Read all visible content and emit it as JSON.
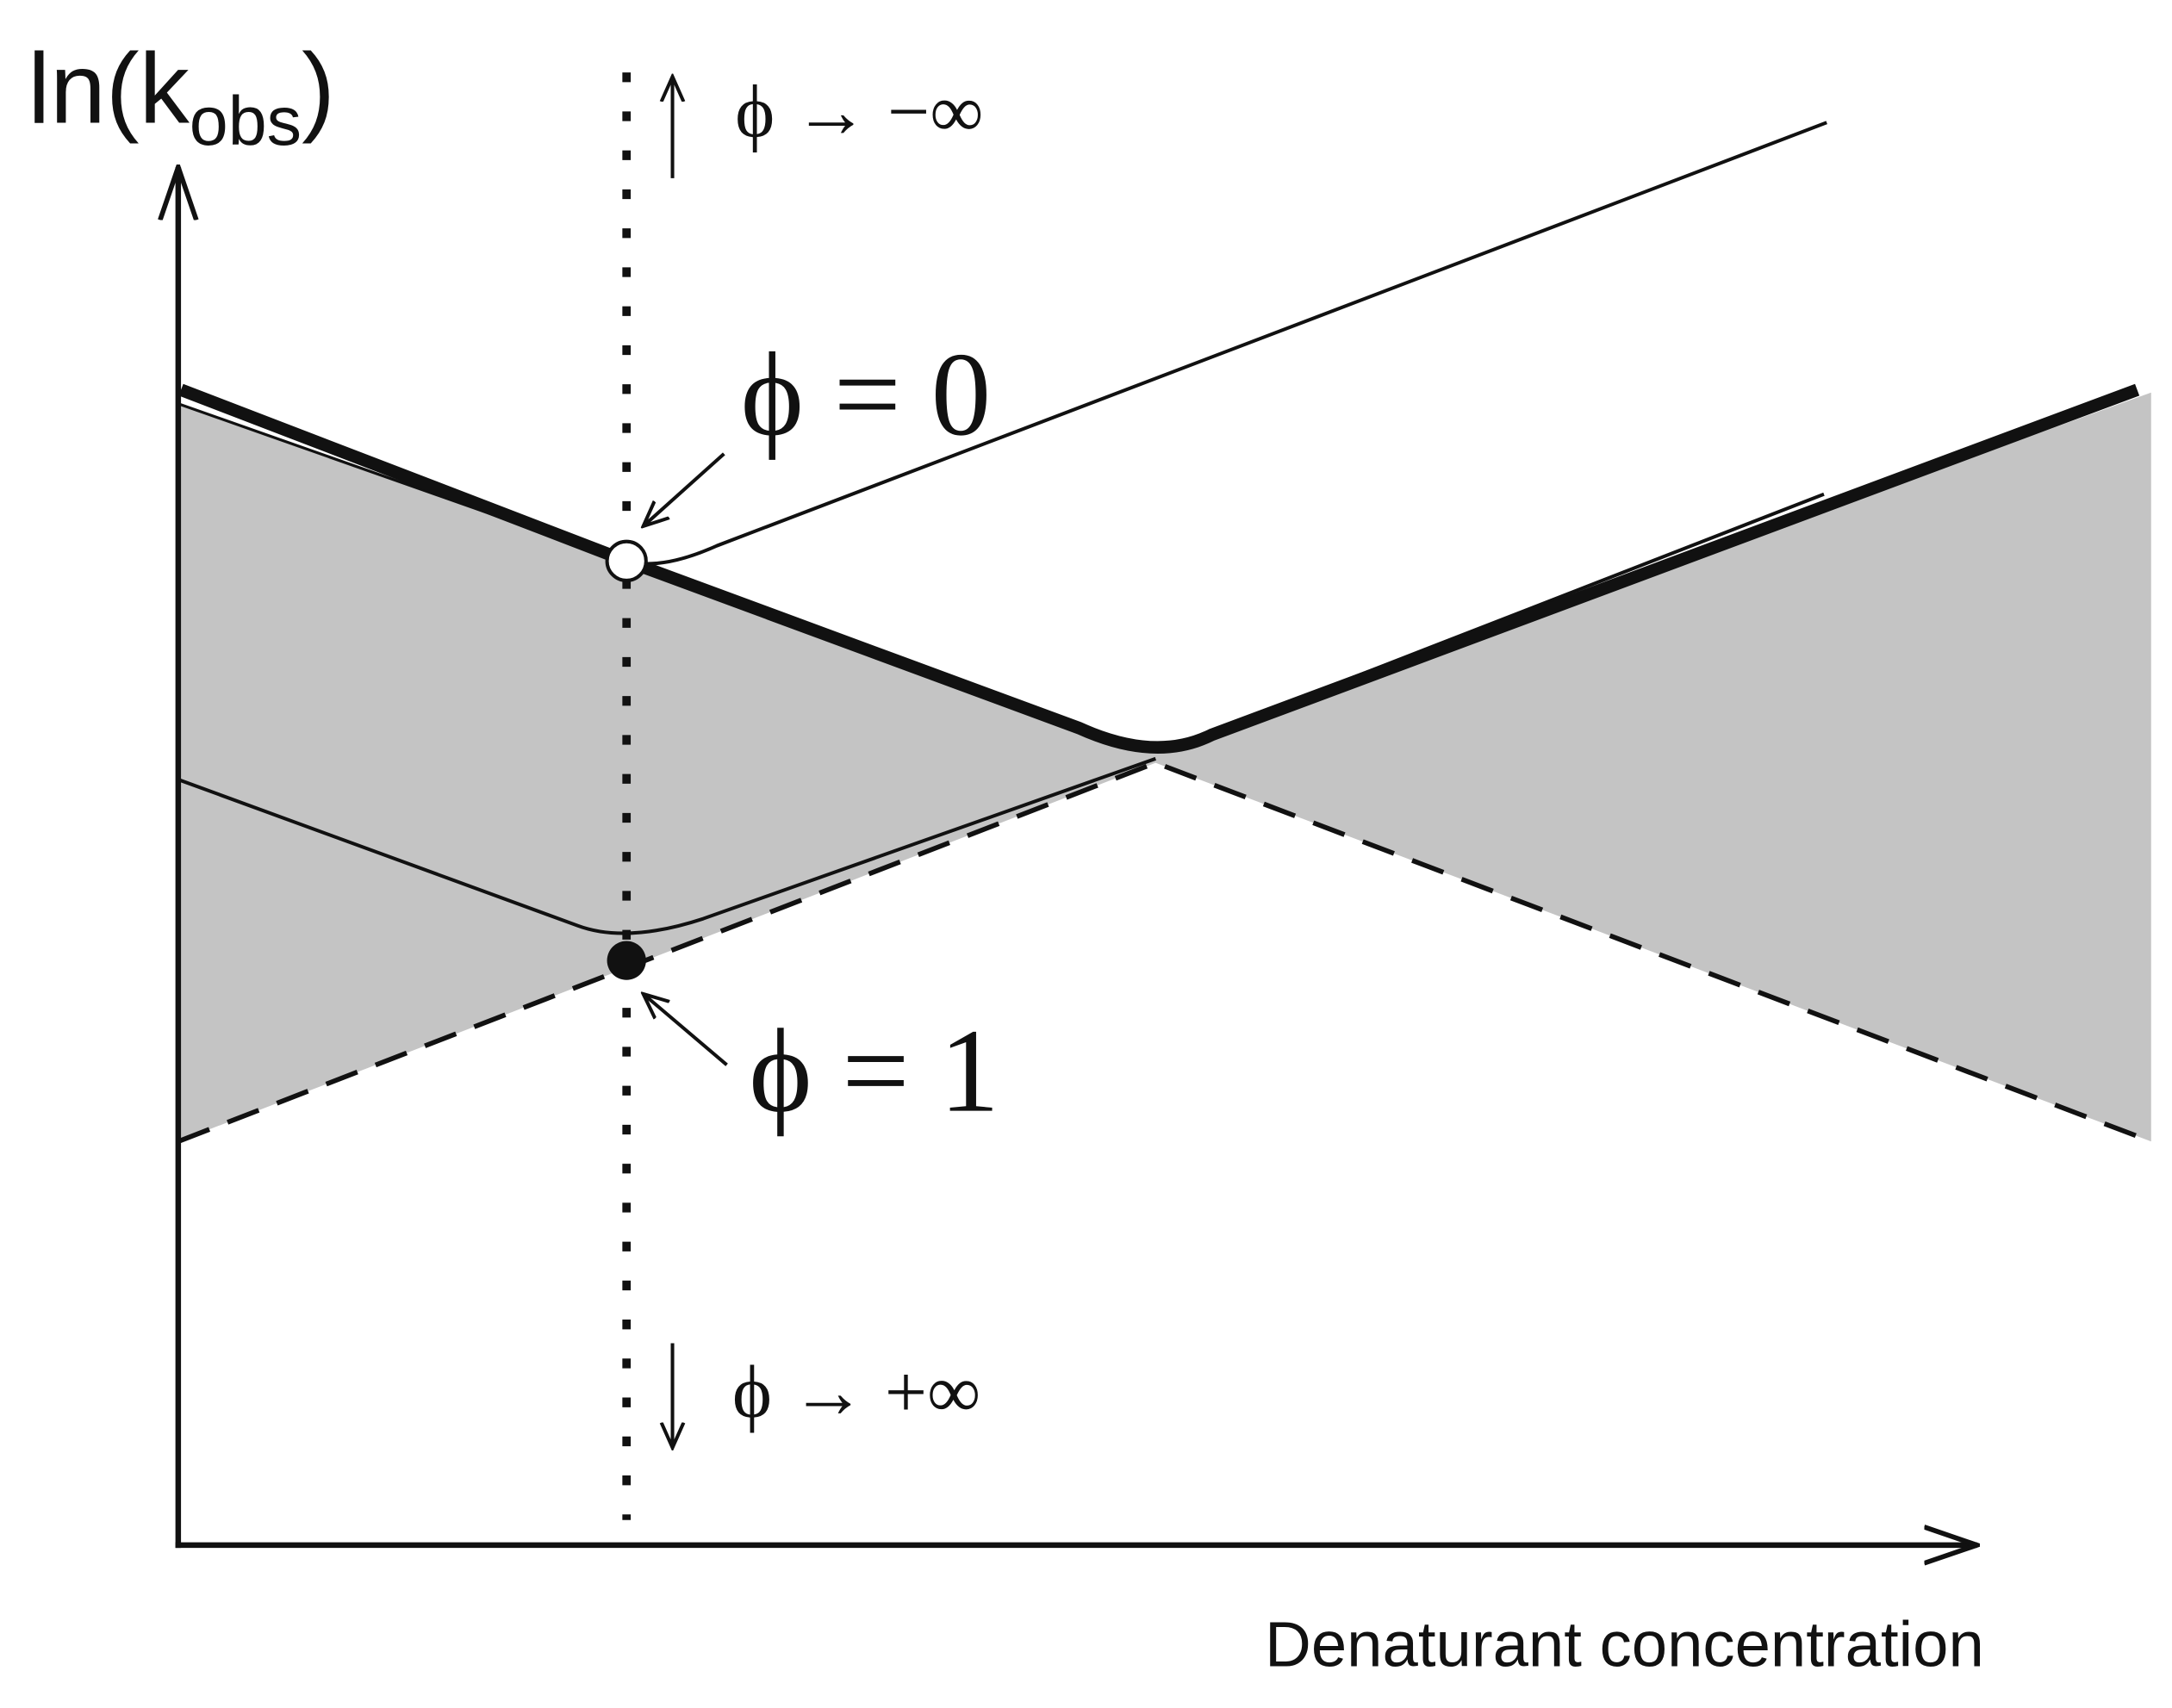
{
  "y_axis_label": {
    "prefix": "ln(k",
    "subscript": "obs",
    "suffix": ")"
  },
  "x_axis_label": "Denaturant concentration",
  "annotations": {
    "phi_minus_inf": "ϕ → −∞",
    "phi_zero": "ϕ = 0",
    "phi_one": "ϕ = 1",
    "phi_plus_inf": "ϕ → +∞"
  }
}
